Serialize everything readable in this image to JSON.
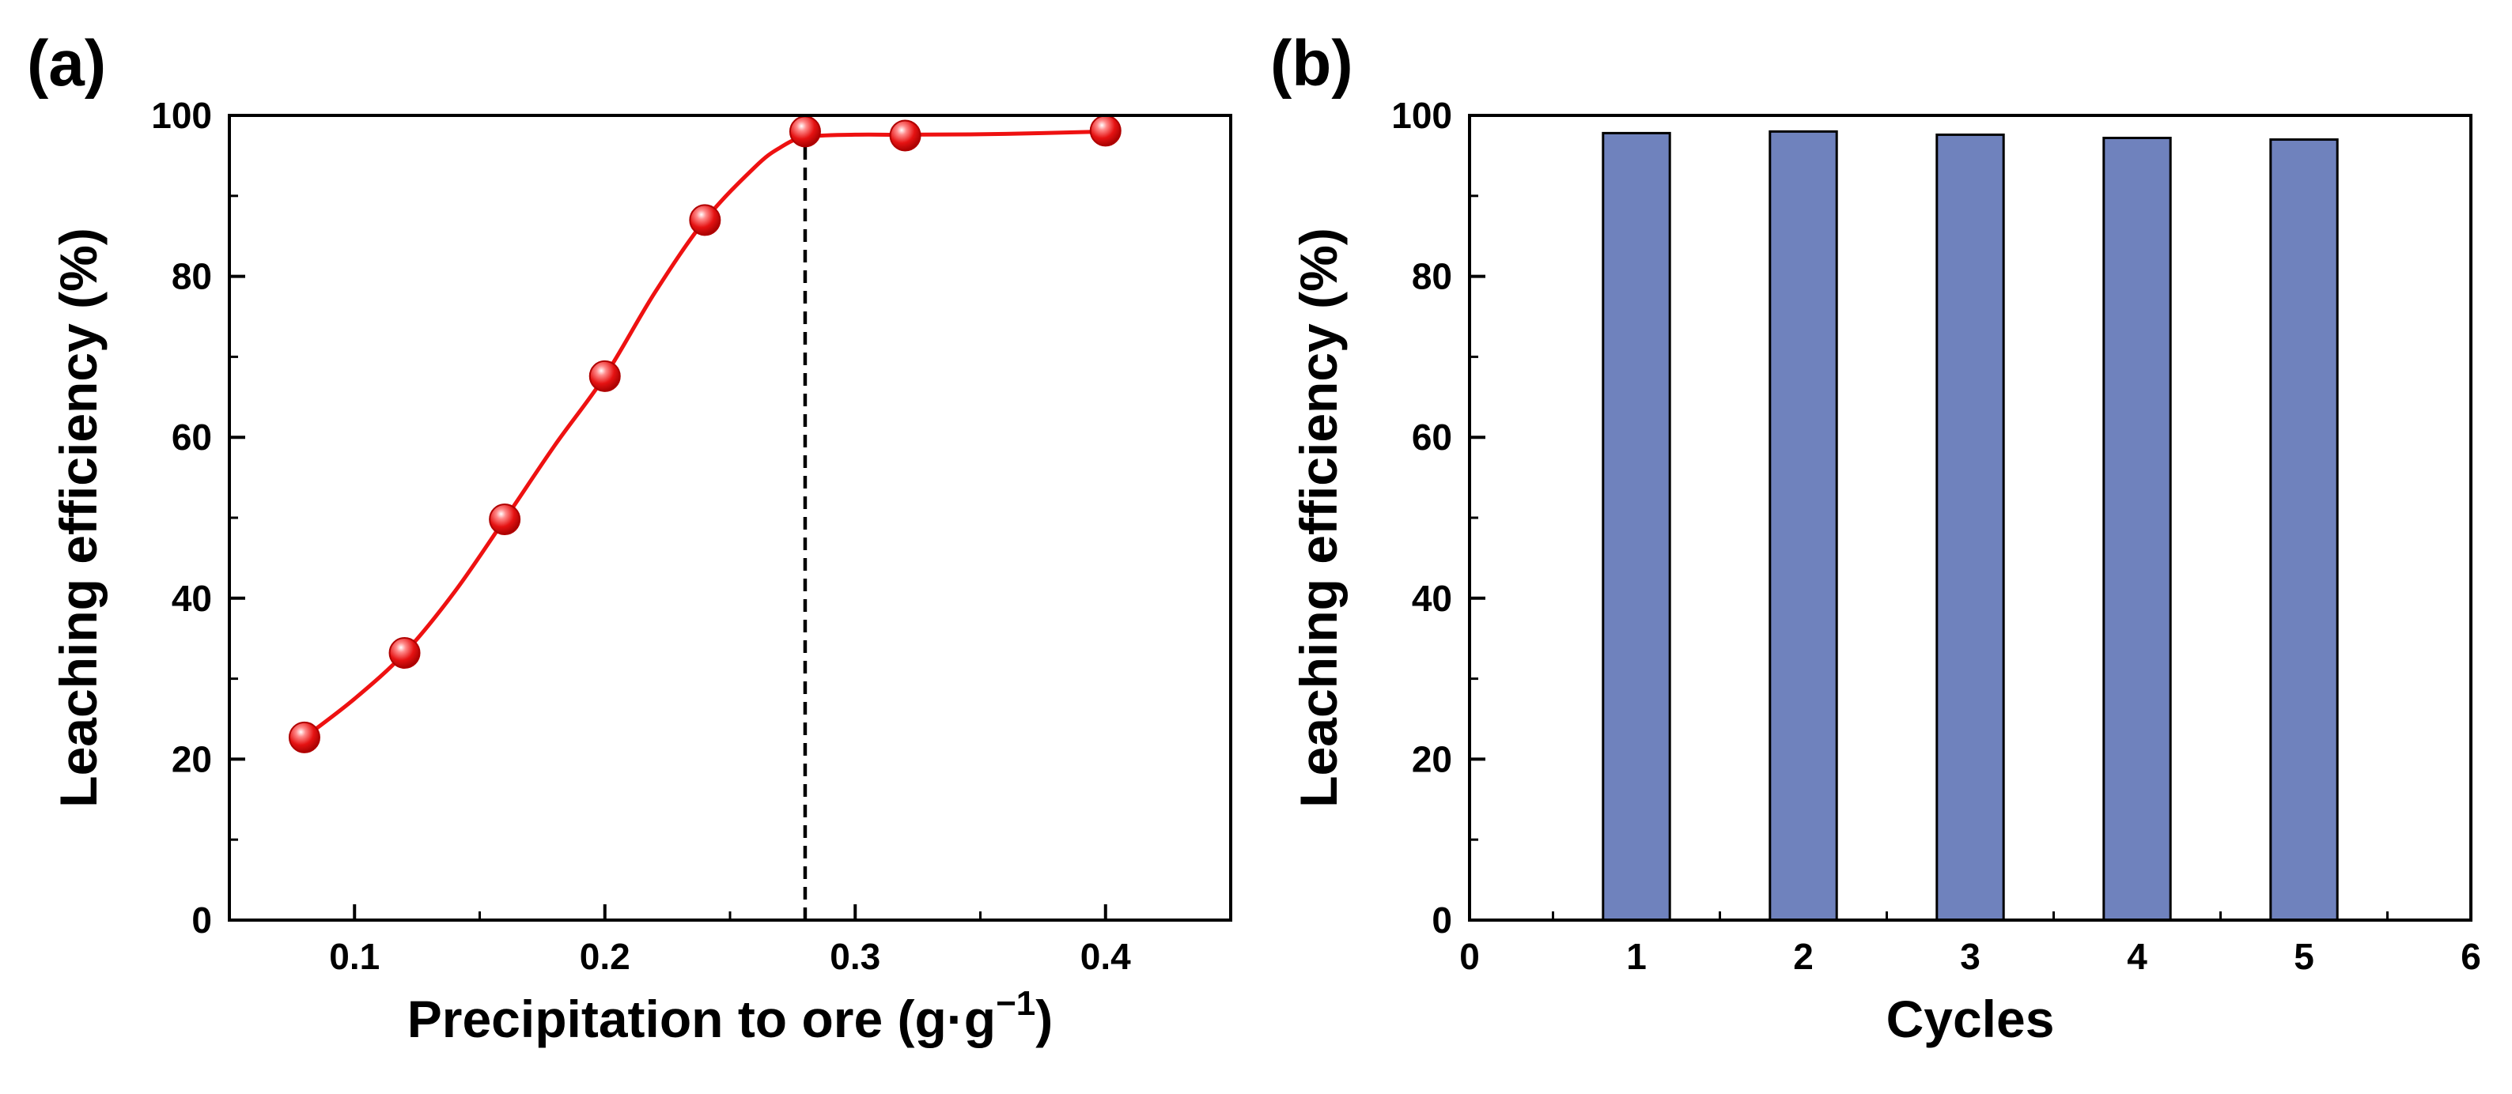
{
  "figure": {
    "panels": [
      "(a)",
      "(b)"
    ]
  },
  "chart_data": [
    {
      "panel": "(a)",
      "type": "scatter",
      "title": "",
      "xlabel": "Precipitation to ore (g·g",
      "xlabel_sup": "−1",
      "xlabel_close": ")",
      "ylabel": "Leaching efficiency (%)",
      "xlim": [
        0.05,
        0.45
      ],
      "ylim": [
        0,
        100
      ],
      "xticks": [
        0.1,
        0.2,
        0.3,
        0.4
      ],
      "xtick_labels": [
        "0.1",
        "0.2",
        "0.3",
        "0.4"
      ],
      "yticks": [
        0,
        20,
        40,
        60,
        80,
        100
      ],
      "ytick_labels": [
        "0",
        "20",
        "40",
        "60",
        "80",
        "100"
      ],
      "series": [
        {
          "name": "Leaching efficiency",
          "color": "#ee1111",
          "x": [
            0.08,
            0.12,
            0.16,
            0.2,
            0.24,
            0.28,
            0.32,
            0.4
          ],
          "y": [
            22.7,
            33.2,
            49.8,
            67.6,
            87.0,
            98.0,
            97.5,
            98.1
          ]
        }
      ],
      "fit_curve": {
        "color": "#ee1111",
        "x": [
          0.08,
          0.1,
          0.12,
          0.14,
          0.16,
          0.18,
          0.2,
          0.22,
          0.24,
          0.26,
          0.27,
          0.28,
          0.3,
          0.32,
          0.36,
          0.4
        ],
        "y": [
          22.7,
          27.5,
          33.2,
          40.8,
          49.8,
          59.0,
          67.6,
          78.0,
          87.0,
          93.6,
          96.0,
          97.3,
          97.6,
          97.6,
          97.7,
          98.0
        ]
      },
      "reference_line": {
        "x": 0.28,
        "style": "dashed",
        "color": "#000000"
      }
    },
    {
      "panel": "(b)",
      "type": "bar",
      "title": "",
      "xlabel": "Cycles",
      "ylabel": "Leaching efficiency (%)",
      "xlim": [
        0,
        6
      ],
      "ylim": [
        0,
        100
      ],
      "xticks": [
        0,
        1,
        2,
        3,
        4,
        5,
        6
      ],
      "xtick_labels": [
        "0",
        "1",
        "2",
        "3",
        "4",
        "5",
        "6"
      ],
      "yticks": [
        0,
        20,
        40,
        60,
        80,
        100
      ],
      "ytick_labels": [
        "0",
        "20",
        "40",
        "60",
        "80",
        "100"
      ],
      "categories": [
        1,
        2,
        3,
        4,
        5
      ],
      "values": [
        97.8,
        98.0,
        97.6,
        97.2,
        97.0
      ],
      "bar_width": 0.4,
      "color": "#6f82bd"
    }
  ]
}
